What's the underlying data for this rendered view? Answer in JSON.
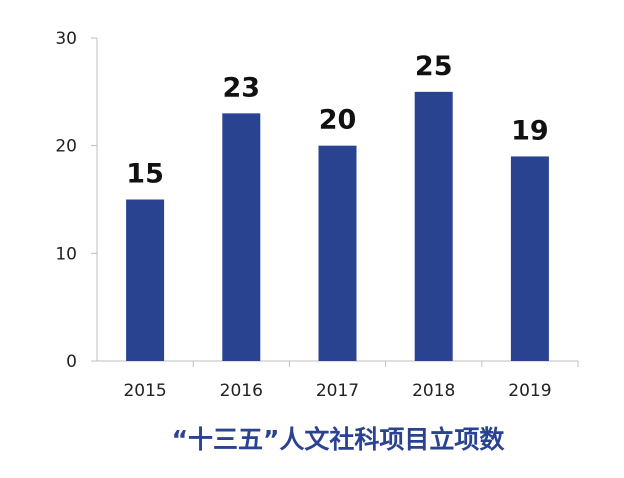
{
  "chart_data": {
    "type": "bar",
    "title": "“十三五”人文社科项目立项数",
    "categories": [
      "2015",
      "2016",
      "2017",
      "2018",
      "2019"
    ],
    "values": [
      15,
      23,
      20,
      25,
      19
    ],
    "data_labels": [
      "15",
      "23",
      "20",
      "25",
      "19"
    ],
    "y_ticks": [
      "0",
      "10",
      "20",
      "30"
    ],
    "ylim": [
      0,
      30
    ],
    "grid": false,
    "legend": "none",
    "bar_color": "#2a4391",
    "title_color": "#2a4391",
    "axis_color": "#bfbfbf"
  }
}
